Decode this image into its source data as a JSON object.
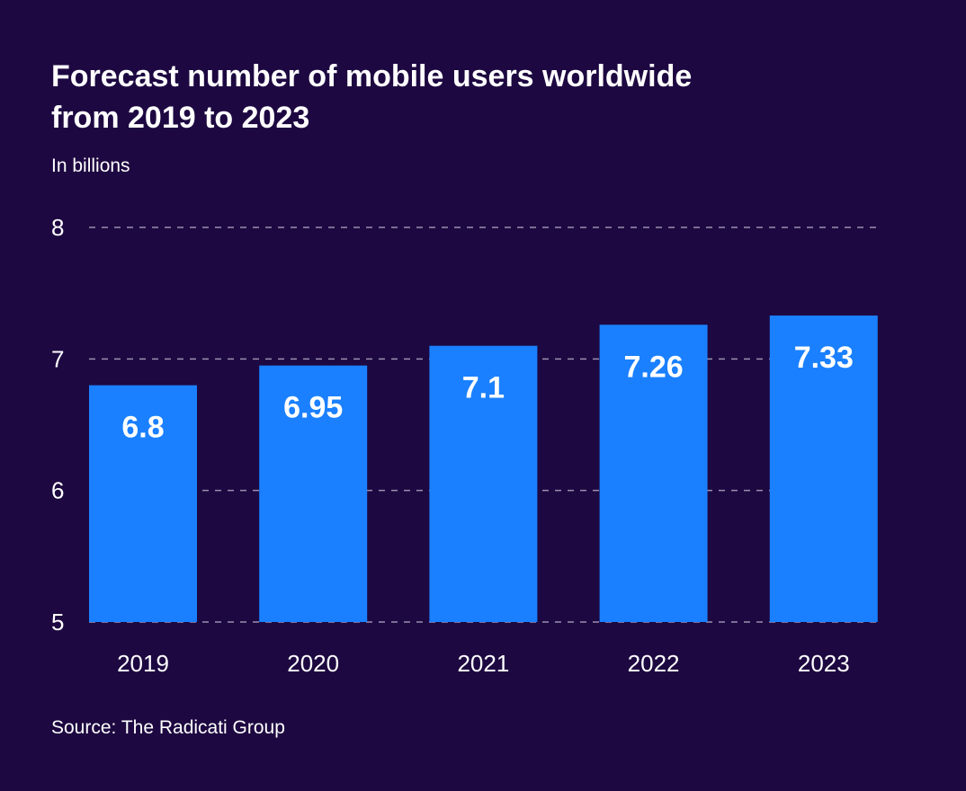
{
  "chart_data": {
    "type": "bar",
    "title": "Forecast number of mobile users worldwide\nfrom 2019 to 2023",
    "subtitle": "In billions",
    "source": "Source: The Radicati Group",
    "categories": [
      "2019",
      "2020",
      "2021",
      "2022",
      "2023"
    ],
    "values": [
      6.8,
      6.95,
      7.1,
      7.26,
      7.33
    ],
    "data_labels": [
      "6.8",
      "6.95",
      "7.1",
      "7.26",
      "7.33"
    ],
    "y_ticks": [
      "5",
      "6",
      "7",
      "8"
    ],
    "ylim": [
      5,
      8
    ],
    "grid": true,
    "grid_style": "dashed",
    "xlabel": "",
    "ylabel": ""
  },
  "colors": {
    "background": "#1d0841",
    "bar": "#1a80ff",
    "grid": "#9a90b0",
    "text": "#ffffff"
  }
}
